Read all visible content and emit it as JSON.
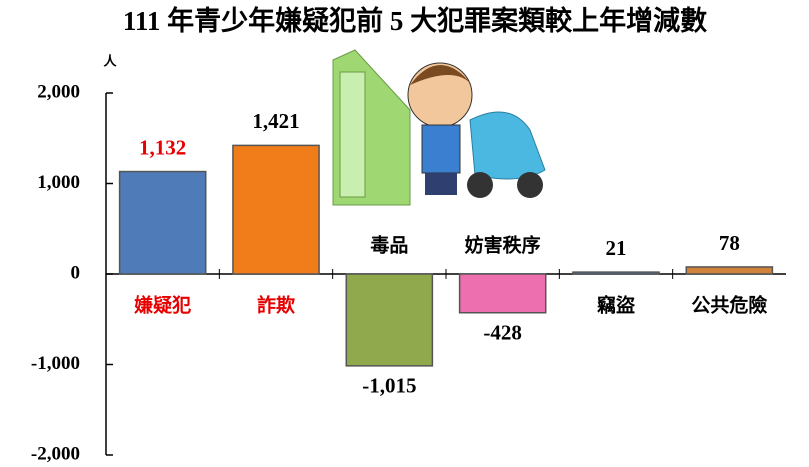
{
  "chart_data": {
    "type": "bar",
    "title": "111 年青少年嫌疑犯前 5 大犯罪案類較上年增減數",
    "y_unit": "人",
    "categories": [
      "嫌疑犯",
      "詐欺",
      "毒品",
      "妨害秩序",
      "竊盜",
      "公共危險"
    ],
    "values": [
      1132,
      1421,
      -1015,
      -428,
      21,
      78
    ],
    "value_labels": [
      "1,132",
      "1,421",
      "-1,015",
      "-428",
      "21",
      "78"
    ],
    "colors": [
      "#4f7cb8",
      "#f07d1a",
      "#8fa94c",
      "#ee6fb0",
      "#4f7cb8",
      "#d0813a"
    ],
    "category_label_colors": [
      "#e60000",
      "#e60000",
      "#000000",
      "#000000",
      "#000000",
      "#000000"
    ],
    "value_label_colors": [
      "#e60000",
      "#000000",
      "#000000",
      "#000000",
      "#000000",
      "#000000"
    ],
    "ylim": [
      -2000,
      2000
    ],
    "yticks": [
      {
        "value": 2000,
        "label": "2,000"
      },
      {
        "value": 1000,
        "label": "1,000"
      },
      0,
      {
        "value": -1000,
        "label": "-1,000"
      },
      {
        "value": -2000,
        "label": "-2,000"
      }
    ]
  }
}
